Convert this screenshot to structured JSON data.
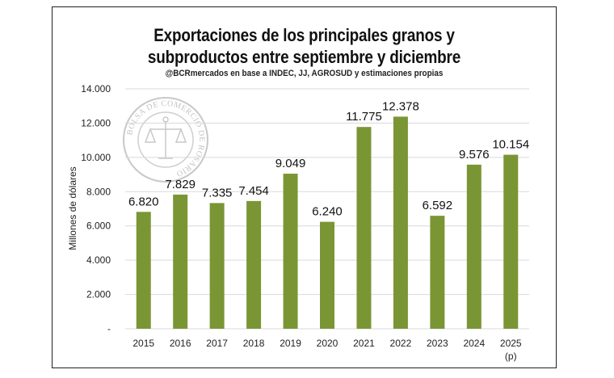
{
  "chart_data": {
    "type": "bar",
    "title_line1": "Exportaciones de los principales granos y",
    "title_line2": "subproductos entre septiembre y diciembre",
    "subtitle": "@BCRmercados en base a INDEC, JJ, AGROSUD y estimaciones propias",
    "ylabel": "Millones de dólares",
    "categories": [
      "2015",
      "2016",
      "2017",
      "2018",
      "2019",
      "2020",
      "2021",
      "2022",
      "2023",
      "2024",
      "2025"
    ],
    "category_sublabels": [
      "",
      "",
      "",
      "",
      "",
      "",
      "",
      "",
      "",
      "",
      "(p)"
    ],
    "values": [
      6820,
      7829,
      7335,
      7454,
      9049,
      6240,
      11775,
      12378,
      6592,
      9576,
      10154
    ],
    "value_labels": [
      "6.820",
      "7.829",
      "7.335",
      "7.454",
      "9.049",
      "6.240",
      "11.775",
      "12.378",
      "6.592",
      "9.576",
      "10.154"
    ],
    "yticks": [
      0,
      2000,
      4000,
      6000,
      8000,
      10000,
      12000,
      14000
    ],
    "ytick_labels": [
      "-",
      "2.000",
      "4.000",
      "6.000",
      "8.000",
      "10.000",
      "12.000",
      "14.000"
    ],
    "ylim": [
      0,
      14000
    ],
    "grid": true,
    "bar_color": "#7a9634",
    "grid_color": "#d9d9d9",
    "watermark": "BOLSA DE COMERCIO DE ROSARIO"
  }
}
